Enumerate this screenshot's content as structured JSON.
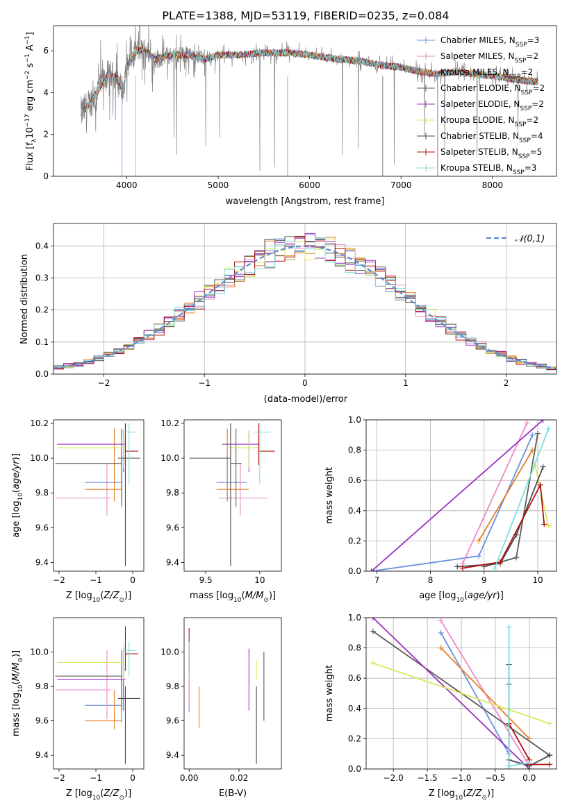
{
  "figure": {
    "title": "PLATE=1388, MJD=53119, FIBERID=0235, z=0.084"
  },
  "colors": [
    "#6a8fdd",
    "#e98ac6",
    "#e67e22",
    "#5a5a5a",
    "#9b30c0",
    "#d8e85a",
    "#4a4a4a",
    "#b01010",
    "#7fdcdc"
  ],
  "chart_data": [
    {
      "id": "spectrum",
      "type": "line",
      "xlabel": "wavelength [Angstrom, rest frame]",
      "ylabel": "Flux [f_λ10^-17 erg cm^-2 s^-1 A^-1]",
      "xlim": [
        3200,
        8700
      ],
      "ylim": [
        0,
        7.2
      ],
      "xticks": [
        4000,
        5000,
        6000,
        7000,
        8000
      ],
      "yticks": [
        0,
        2,
        4,
        6
      ],
      "legend_position": "top-right",
      "observed_line_color": "#808080",
      "continuum_knots": {
        "x": [
          3500,
          3600,
          3700,
          3800,
          3900,
          3960,
          4000,
          4100,
          4200,
          4300,
          4500,
          4700,
          4861,
          5000,
          5200,
          5500,
          5800,
          6000,
          6300,
          6563,
          6800,
          7000,
          7200,
          7400,
          7600,
          7800,
          8000,
          8300,
          8500
        ],
        "y": [
          3.0,
          3.5,
          4.2,
          4.9,
          4.7,
          4.0,
          5.2,
          6.0,
          6.1,
          5.6,
          5.8,
          5.8,
          5.6,
          5.8,
          5.8,
          5.9,
          5.9,
          5.8,
          5.6,
          5.5,
          5.3,
          5.2,
          5.0,
          4.9,
          5.0,
          4.9,
          4.8,
          4.6,
          4.5
        ]
      },
      "series": [
        {
          "name": "Chabrier MILES",
          "nssp": "3"
        },
        {
          "name": "Salpeter MILES",
          "nssp": "2"
        },
        {
          "name": "Kroupa MILES",
          "nssp": "2"
        },
        {
          "name": "Chabrier ELODIE",
          "nssp": "2"
        },
        {
          "name": "Salpeter ELODIE",
          "nssp": "2"
        },
        {
          "name": "Kroupa ELODIE",
          "nssp": "2"
        },
        {
          "name": "Chabrier STELIB",
          "nssp": "4"
        },
        {
          "name": "Salpeter STELIB",
          "nssp": "5"
        },
        {
          "name": "Kroupa STELIB",
          "nssp": "3"
        }
      ]
    },
    {
      "id": "residuals",
      "type": "histogram",
      "xlabel": "(data-model)/error",
      "ylabel": "Normed distribution",
      "xlim": [
        -2.5,
        2.5
      ],
      "ylim": [
        0,
        0.47
      ],
      "xticks": [
        -2,
        -1,
        0,
        1,
        2
      ],
      "yticks": [
        0.0,
        0.1,
        0.2,
        0.3,
        0.4
      ],
      "grid": true,
      "bin_width": 0.1,
      "legend_position": "top-right",
      "reference_curve": {
        "name": "𝒩(0,1)",
        "mean": 0,
        "sigma": 1,
        "color": "#5b8bd0"
      }
    },
    {
      "id": "age-vs-Z",
      "type": "errorbar",
      "xlabel": "Z [log10(Z/Z⊙)]",
      "ylabel": "age  [log10(age/yr)]",
      "xlim": [
        -2.15,
        0.3
      ],
      "ylim": [
        9.35,
        10.22
      ],
      "xticks": [
        -2,
        -1,
        0
      ],
      "yticks": [
        9.4,
        9.6,
        9.8,
        10.0,
        10.2
      ],
      "points": [
        {
          "x": -0.3,
          "xerr": [
            1.0,
            0.0
          ],
          "y": 9.86,
          "yerr": [
            0.1,
            0.15
          ]
        },
        {
          "x": -0.7,
          "xerr": [
            1.4,
            0.1
          ],
          "y": 9.77,
          "yerr": [
            0.1,
            0.2
          ]
        },
        {
          "x": -0.5,
          "xerr": [
            0.8,
            0.2
          ],
          "y": 9.82,
          "yerr": [
            0.07,
            0.35
          ]
        },
        {
          "x": -0.3,
          "xerr": [
            1.8,
            0.0
          ],
          "y": 9.97,
          "yerr": [
            0.25,
            0.2
          ]
        },
        {
          "x": -0.25,
          "xerr": [
            1.8,
            0.05
          ],
          "y": 10.08,
          "yerr": [
            0.16,
            0.08
          ]
        },
        {
          "x": -0.25,
          "xerr": [
            1.8,
            0.0
          ],
          "y": 10.06,
          "yerr": [
            0.12,
            0.1
          ]
        },
        {
          "x": -0.2,
          "xerr": [
            0.2,
            0.4
          ],
          "y": 10.0,
          "yerr": [
            0.62,
            0.2
          ]
        },
        {
          "x": -0.2,
          "xerr": [
            0.0,
            0.35
          ],
          "y": 10.04,
          "yerr": [
            0.08,
            0.16
          ]
        },
        {
          "x": -0.1,
          "xerr": [
            0.15,
            0.2
          ],
          "y": 10.15,
          "yerr": [
            0.3,
            0.05
          ]
        }
      ]
    },
    {
      "id": "age-vs-mass",
      "type": "errorbar",
      "xlabel": "mass [log10(M/M⊙)]",
      "ylabel": "",
      "xlim": [
        9.3,
        10.2
      ],
      "ylim": [
        9.35,
        10.22
      ],
      "xticks": [
        9.5,
        10.0
      ],
      "yticks": [
        9.4,
        9.6,
        9.8,
        10.0,
        10.2
      ],
      "points": [
        {
          "x": 9.7,
          "xerr": [
            0.1,
            0.18
          ],
          "y": 9.86,
          "yerr": [
            0.1,
            0.15
          ]
        },
        {
          "x": 9.82,
          "xerr": [
            0.2,
            0.25
          ],
          "y": 9.77,
          "yerr": [
            0.1,
            0.2
          ]
        },
        {
          "x": 9.7,
          "xerr": [
            0.1,
            0.2
          ],
          "y": 9.82,
          "yerr": [
            0.07,
            0.35
          ]
        },
        {
          "x": 9.78,
          "xerr": [
            0.05,
            0.05
          ],
          "y": 9.97,
          "yerr": [
            0.25,
            0.2
          ]
        },
        {
          "x": 9.9,
          "xerr": [
            0.25,
            0.1
          ],
          "y": 10.08,
          "yerr": [
            0.16,
            0.08
          ]
        },
        {
          "x": 9.9,
          "xerr": [
            0.2,
            0.1
          ],
          "y": 10.06,
          "yerr": [
            0.12,
            0.1
          ]
        },
        {
          "x": 9.73,
          "xerr": [
            0.38,
            0.0
          ],
          "y": 10.0,
          "yerr": [
            0.62,
            0.2
          ]
        },
        {
          "x": 9.99,
          "xerr": [
            0.0,
            0.15
          ],
          "y": 10.04,
          "yerr": [
            0.08,
            0.16
          ]
        },
        {
          "x": 10.0,
          "xerr": [
            0.05,
            0.1
          ],
          "y": 10.15,
          "yerr": [
            0.3,
            0.05
          ]
        }
      ]
    },
    {
      "id": "weight-vs-age",
      "type": "line",
      "xlabel": "age  [log10(age/yr)]",
      "ylabel": "mass weight",
      "xlim": [
        6.8,
        10.35
      ],
      "ylim": [
        0,
        1
      ],
      "xticks": [
        7,
        8,
        9,
        10
      ],
      "yticks": [
        0.0,
        0.2,
        0.4,
        0.6,
        0.8,
        1.0
      ],
      "grid": true,
      "series": [
        {
          "x": [
            6.9,
            8.9,
            9.9
          ],
          "y": [
            0.0,
            0.1,
            0.9
          ]
        },
        {
          "x": [
            8.6,
            9.8
          ],
          "y": [
            0.05,
            0.98
          ]
        },
        {
          "x": [
            8.9,
            9.9
          ],
          "y": [
            0.2,
            0.8
          ]
        },
        {
          "x": [
            9.0,
            9.6,
            10.0
          ],
          "y": [
            0.03,
            0.09,
            0.91
          ]
        },
        {
          "x": [
            6.9,
            10.1
          ],
          "y": [
            0.0,
            1.0
          ]
        },
        {
          "x": [
            9.95,
            10.2
          ],
          "y": [
            0.7,
            0.3
          ]
        },
        {
          "x": [
            8.5,
            9.3,
            9.6,
            10.1
          ],
          "y": [
            0.03,
            0.05,
            0.24,
            0.69
          ]
        },
        {
          "x": [
            8.6,
            9.3,
            10.05,
            10.12
          ],
          "y": [
            0.02,
            0.06,
            0.57,
            0.31
          ]
        },
        {
          "x": [
            9.2,
            10.2
          ],
          "y": [
            0.02,
            0.94
          ]
        }
      ]
    },
    {
      "id": "mass-vs-Z",
      "type": "errorbar",
      "xlabel": "Z [log10(Z/Z⊙)]",
      "ylabel": "mass [log10(M/M⊙)]",
      "xlim": [
        -2.15,
        0.3
      ],
      "ylim": [
        9.32,
        10.2
      ],
      "xticks": [
        -2,
        -1,
        0
      ],
      "yticks": [
        9.4,
        9.6,
        9.8,
        10.0
      ],
      "points": [
        {
          "x": -0.3,
          "xerr": [
            1.0,
            0.0
          ],
          "y": 9.69,
          "yerr": [
            0.1,
            0.18
          ]
        },
        {
          "x": -0.7,
          "xerr": [
            1.4,
            0.1
          ],
          "y": 9.78,
          "yerr": [
            0.17,
            0.23
          ]
        },
        {
          "x": -0.5,
          "xerr": [
            0.8,
            0.2
          ],
          "y": 9.6,
          "yerr": [
            0.05,
            0.18
          ]
        },
        {
          "x": -0.3,
          "xerr": [
            1.8,
            0.0
          ],
          "y": 9.86,
          "yerr": [
            0.2,
            0.15
          ]
        },
        {
          "x": -0.25,
          "xerr": [
            1.8,
            0.05
          ],
          "y": 9.84,
          "yerr": [
            0.18,
            0.18
          ]
        },
        {
          "x": -0.25,
          "xerr": [
            1.8,
            0.0
          ],
          "y": 9.94,
          "yerr": [
            0.1,
            0.1
          ]
        },
        {
          "x": -0.2,
          "xerr": [
            0.2,
            0.4
          ],
          "y": 9.73,
          "yerr": [
            0.38,
            0.07
          ]
        },
        {
          "x": -0.2,
          "xerr": [
            0.0,
            0.35
          ],
          "y": 9.99,
          "yerr": [
            0.1,
            0.16
          ]
        },
        {
          "x": -0.1,
          "xerr": [
            0.15,
            0.2
          ],
          "y": 10.01,
          "yerr": [
            0.15,
            0.05
          ]
        }
      ]
    },
    {
      "id": "mass-vs-ebv",
      "type": "errorbar",
      "xlabel": "E(B-V)",
      "ylabel": "",
      "xlim": [
        -0.002,
        0.037
      ],
      "ylim": [
        9.32,
        10.2
      ],
      "xticks": [
        0.0,
        0.02
      ],
      "xtick_labels": [
        "0.00",
        "0.02"
      ],
      "yticks": [
        9.4,
        9.6,
        9.8,
        10.0
      ],
      "points": [
        {
          "x": 0.0,
          "y": 9.69,
          "yerr": [
            0.04,
            0.22
          ]
        },
        {
          "x": 0.0,
          "y": 9.78,
          "yerr": [
            0.1,
            0.2
          ]
        },
        {
          "x": 0.004,
          "y": 9.6,
          "yerr": [
            0.04,
            0.2
          ]
        },
        {
          "x": 0.03,
          "y": 9.82,
          "yerr": [
            0.22,
            0.18
          ]
        },
        {
          "x": 0.024,
          "y": 9.84,
          "yerr": [
            0.18,
            0.18
          ]
        },
        {
          "x": 0.027,
          "y": 9.94,
          "yerr": [
            0.1,
            0.01
          ]
        },
        {
          "x": 0.027,
          "y": 9.73,
          "yerr": [
            0.38,
            0.07
          ]
        },
        {
          "x": 0.0,
          "y": 9.99,
          "yerr": [
            0.1,
            0.15
          ]
        },
        {
          "x": 0.0,
          "y": 10.01,
          "yerr": [
            0.15,
            0.05
          ]
        }
      ]
    },
    {
      "id": "weight-vs-Z",
      "type": "line",
      "xlabel": "Z [log10(Z/Z⊙)]",
      "ylabel": "mass weight",
      "xlim": [
        -2.4,
        0.4
      ],
      "ylim": [
        0,
        1
      ],
      "xticks": [
        -2.0,
        -1.5,
        -1.0,
        -0.5,
        0.0
      ],
      "xtick_labels": [
        "−2.0",
        "−1.5",
        "−1.0",
        "−0.5",
        "0.0"
      ],
      "yticks": [
        0.0,
        0.2,
        0.4,
        0.6,
        0.8,
        1.0
      ],
      "grid": true,
      "series": [
        {
          "x": [
            -1.3,
            -0.3,
            -0.3
          ],
          "y": [
            0.9,
            0.1,
            0.0
          ]
        },
        {
          "x": [
            -1.3,
            0.0
          ],
          "y": [
            0.98,
            0.02
          ]
        },
        {
          "x": [
            -1.3,
            0.0
          ],
          "y": [
            0.8,
            0.2
          ]
        },
        {
          "x": [
            -2.3,
            0.3
          ],
          "y": [
            0.91,
            0.09
          ]
        },
        {
          "x": [
            -2.3,
            0.0
          ],
          "y": [
            1.0,
            0.0
          ]
        },
        {
          "x": [
            -2.3,
            0.3
          ],
          "y": [
            0.7,
            0.3
          ]
        },
        {
          "x": [
            -0.3,
            -0.3,
            -0.3,
            0.0,
            0.3
          ],
          "y": [
            0.69,
            0.56,
            0.06,
            0.02,
            0.09
          ]
        },
        {
          "x": [
            -0.3,
            0.0,
            0.0,
            0.3
          ],
          "y": [
            0.3,
            0.06,
            0.03,
            0.03
          ]
        },
        {
          "x": [
            -0.3,
            -0.3,
            0.0
          ],
          "y": [
            0.94,
            0.02,
            0.04
          ]
        }
      ]
    }
  ]
}
